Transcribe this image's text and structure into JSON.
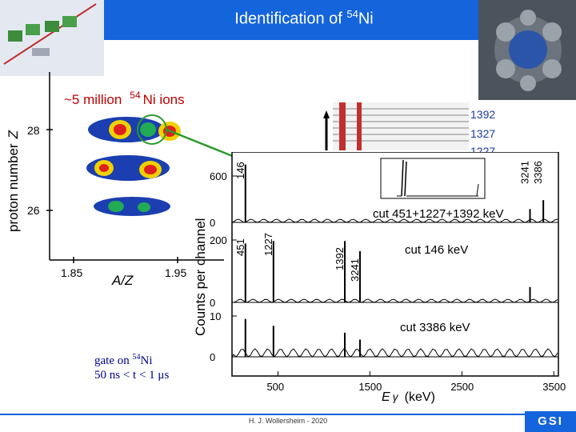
{
  "slide": {
    "title_prefix": "Identification of ",
    "title_mass": "54",
    "title_element": "Ni",
    "footer": "H. J. Wollersheim - 2020",
    "logo": "GSI",
    "accent_color": "#1464dc"
  },
  "pid_plot": {
    "ions_prefix": "~5 million",
    "ions_mass": "54",
    "ions_suffix": "Ni ions",
    "ylabel_text": "proton number",
    "ylabel_symbol": "Z",
    "xlabel": "A/Z",
    "y_ticks": [
      "28",
      "26"
    ],
    "x_ticks": [
      "1.85",
      "1.95"
    ]
  },
  "level_scheme": {
    "levels": [
      "1392",
      "1327",
      "1227"
    ]
  },
  "spectra": {
    "ylabel": "Counts per channel",
    "xlabel_symbol": "E",
    "xlabel_greek": "γ",
    "xlabel_unit": "(keV)",
    "x_ticks": [
      "500",
      "1500",
      "2500",
      "3500"
    ],
    "x_tick_values": [
      500,
      1500,
      2500,
      3500
    ],
    "panels": [
      {
        "name": "panel-top",
        "cut_label": "cut 451+1227+1392 keV",
        "y_ticks": [
          "600",
          "0"
        ],
        "peak_labels": [
          "146",
          "3241",
          "3386"
        ]
      },
      {
        "name": "panel-middle",
        "cut_label": "cut 146 keV",
        "y_ticks": [
          "200",
          "0"
        ],
        "peak_labels": [
          "451",
          "1227",
          "1392",
          "3241"
        ]
      },
      {
        "name": "panel-bottom",
        "cut_label": "cut 3386 keV",
        "y_ticks": [
          "10",
          "0"
        ],
        "peak_labels": []
      }
    ]
  },
  "gate_note": {
    "line1_prefix": "gate on ",
    "line1_mass": "54",
    "line1_element": "Ni",
    "line2": "50 ns < t < 1 μs"
  },
  "chart_data": [
    {
      "type": "line",
      "title": "cut 451+1227+1392 keV",
      "xlabel": "Eγ (keV)",
      "ylabel": "Counts per channel",
      "xlim": [
        0,
        3550
      ],
      "ylim": [
        0,
        700
      ],
      "series": [
        {
          "x": [
            146,
            3241,
            3386
          ],
          "values": [
            650,
            150,
            250
          ]
        }
      ]
    },
    {
      "type": "line",
      "title": "cut 146 keV",
      "xlabel": "Eγ (keV)",
      "ylabel": "Counts per channel",
      "xlim": [
        0,
        3550
      ],
      "ylim": [
        0,
        250
      ],
      "series": [
        {
          "x": [
            146,
            451,
            1227,
            1392,
            3241
          ],
          "values": [
            230,
            240,
            240,
            200,
            60
          ]
        }
      ]
    },
    {
      "type": "line",
      "title": "cut 3386 keV",
      "xlabel": "Eγ (keV)",
      "ylabel": "Counts per channel",
      "xlim": [
        0,
        3550
      ],
      "ylim": [
        0,
        13
      ],
      "series": [
        {
          "x": [
            146,
            451,
            1227,
            1392
          ],
          "values": [
            11,
            9,
            7,
            5
          ]
        }
      ]
    }
  ]
}
